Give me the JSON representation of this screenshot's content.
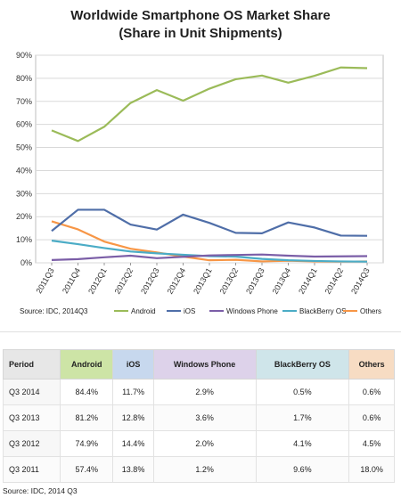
{
  "chart_data": {
    "type": "line",
    "title": "Worldwide Smartphone OS Market Share",
    "subtitle": "(Share in Unit Shipments)",
    "categories": [
      "2011Q3",
      "2011Q4",
      "2012Q1",
      "2012Q2",
      "2012Q3",
      "2012Q4",
      "2013Q1",
      "2013Q2",
      "2013Q3",
      "2013Q4",
      "2014Q1",
      "2014Q2",
      "2014Q3"
    ],
    "ylim": [
      0,
      90
    ],
    "yticks": [
      "0%",
      "10%",
      "20%",
      "30%",
      "40%",
      "50%",
      "60%",
      "70%",
      "80%",
      "90%"
    ],
    "grid": true,
    "legend_position": "bottom",
    "series": [
      {
        "name": "Android",
        "color": "#9bbb59",
        "values": [
          57.4,
          52.8,
          59.0,
          69.3,
          74.9,
          70.3,
          75.5,
          79.6,
          81.2,
          78.1,
          81.1,
          84.7,
          84.4
        ]
      },
      {
        "name": "iOS",
        "color": "#4f6ea8",
        "values": [
          13.8,
          23.0,
          23.0,
          16.6,
          14.4,
          20.9,
          17.3,
          13.0,
          12.8,
          17.5,
          15.3,
          11.8,
          11.7
        ]
      },
      {
        "name": "Windows Phone",
        "color": "#7b5ea7",
        "values": [
          1.2,
          1.6,
          2.4,
          3.1,
          2.0,
          2.6,
          3.2,
          3.4,
          3.6,
          3.1,
          2.7,
          2.8,
          2.9
        ]
      },
      {
        "name": "BlackBerry OS",
        "color": "#4bacc6",
        "values": [
          9.6,
          8.1,
          6.4,
          4.9,
          4.1,
          3.5,
          2.9,
          2.7,
          1.7,
          1.1,
          0.8,
          0.6,
          0.5
        ]
      },
      {
        "name": "Others",
        "color": "#f79646",
        "values": [
          18.0,
          14.5,
          9.2,
          6.1,
          4.5,
          2.7,
          1.1,
          1.3,
          0.6,
          0.9,
          0.6,
          0.5,
          0.6
        ]
      }
    ],
    "source": "Source: IDC, 2014Q3"
  },
  "table": {
    "headers": [
      "Period",
      "Android",
      "iOS",
      "Windows Phone",
      "BlackBerry OS",
      "Others"
    ],
    "rows": [
      [
        "Q3 2014",
        "84.4%",
        "11.7%",
        "2.9%",
        "0.5%",
        "0.6%"
      ],
      [
        "Q3 2013",
        "81.2%",
        "12.8%",
        "3.6%",
        "1.7%",
        "0.6%"
      ],
      [
        "Q3 2012",
        "74.9%",
        "14.4%",
        "2.0%",
        "4.1%",
        "4.5%"
      ],
      [
        "Q3 2011",
        "57.4%",
        "13.8%",
        "1.2%",
        "9.6%",
        "18.0%"
      ]
    ],
    "source": "Source: IDC, 2014 Q3"
  }
}
